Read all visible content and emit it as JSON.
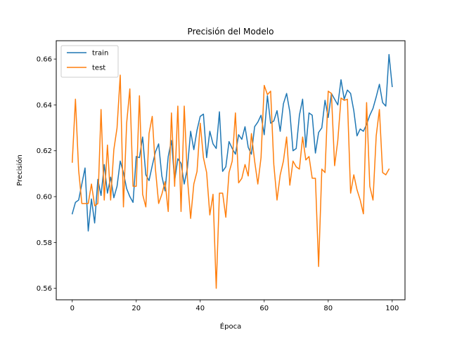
{
  "chart_data": {
    "type": "line",
    "title": "Precisión del Modelo",
    "xlabel": "Época",
    "ylabel": "Precisión",
    "xlim": [
      -5,
      104
    ],
    "ylim": [
      0.555,
      0.668
    ],
    "xticks": [
      0,
      20,
      40,
      60,
      80,
      100
    ],
    "yticks": [
      0.56,
      0.58,
      0.6,
      0.62,
      0.64,
      0.66
    ],
    "ytick_labels": [
      "0.56",
      "0.58",
      "0.60",
      "0.62",
      "0.64",
      "0.66"
    ],
    "grid": false,
    "legend_position": "top-left",
    "series": [
      {
        "name": "train",
        "color": "#1f77b4",
        "values": [
          0.5925,
          0.5975,
          0.5985,
          0.6055,
          0.6125,
          0.585,
          0.599,
          0.5885,
          0.6075,
          0.6005,
          0.614,
          0.6015,
          0.6085,
          0.5995,
          0.6045,
          0.6155,
          0.6105,
          0.6035,
          0.6,
          0.5975,
          0.6175,
          0.617,
          0.626,
          0.6095,
          0.607,
          0.6135,
          0.6195,
          0.623,
          0.609,
          0.6025,
          0.6175,
          0.6245,
          0.607,
          0.6165,
          0.6145,
          0.6055,
          0.6125,
          0.6285,
          0.6205,
          0.629,
          0.635,
          0.636,
          0.617,
          0.6285,
          0.623,
          0.621,
          0.637,
          0.611,
          0.613,
          0.624,
          0.621,
          0.6185,
          0.627,
          0.625,
          0.6305,
          0.6215,
          0.6185,
          0.6305,
          0.6325,
          0.6355,
          0.627,
          0.644,
          0.632,
          0.633,
          0.6375,
          0.6285,
          0.6405,
          0.645,
          0.637,
          0.62,
          0.621,
          0.6355,
          0.6425,
          0.6215,
          0.6365,
          0.6355,
          0.619,
          0.628,
          0.63,
          0.642,
          0.6345,
          0.645,
          0.6425,
          0.64,
          0.651,
          0.6425,
          0.6465,
          0.645,
          0.6375,
          0.6265,
          0.6295,
          0.6285,
          0.6315,
          0.6355,
          0.6385,
          0.6435,
          0.649,
          0.641,
          0.6395,
          0.662,
          0.648
        ]
      },
      {
        "name": "test",
        "color": "#ff7f0e",
        "values": [
          0.615,
          0.6425,
          0.6115,
          0.597,
          0.597,
          0.597,
          0.6055,
          0.596,
          0.597,
          0.638,
          0.5985,
          0.6225,
          0.5985,
          0.6205,
          0.63,
          0.653,
          0.5955,
          0.632,
          0.647,
          0.6045,
          0.6045,
          0.644,
          0.601,
          0.5955,
          0.6275,
          0.635,
          0.612,
          0.597,
          0.601,
          0.6065,
          0.5935,
          0.6365,
          0.6045,
          0.6395,
          0.5935,
          0.6395,
          0.608,
          0.5905,
          0.6055,
          0.611,
          0.632,
          0.617,
          0.6105,
          0.592,
          0.601,
          0.56,
          0.6015,
          0.6015,
          0.591,
          0.6105,
          0.6155,
          0.6365,
          0.606,
          0.608,
          0.614,
          0.609,
          0.6275,
          0.6155,
          0.6055,
          0.617,
          0.6485,
          0.6445,
          0.646,
          0.614,
          0.5985,
          0.6095,
          0.6155,
          0.626,
          0.605,
          0.6155,
          0.613,
          0.612,
          0.626,
          0.616,
          0.6175,
          0.608,
          0.608,
          0.5695,
          0.612,
          0.6105,
          0.646,
          0.645,
          0.6135,
          0.6245,
          0.643,
          0.642,
          0.6425,
          0.6015,
          0.6095,
          0.603,
          0.5985,
          0.5925,
          0.641,
          0.6045,
          0.5985,
          0.6265,
          0.638,
          0.6105,
          0.6095,
          0.612
        ]
      }
    ]
  }
}
